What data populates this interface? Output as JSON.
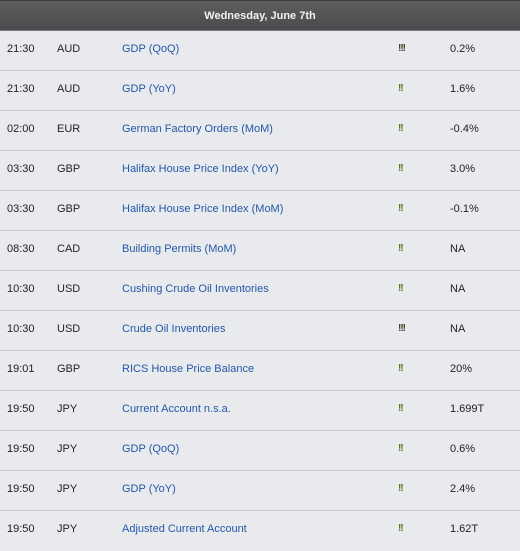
{
  "header": {
    "title": "Wednesday, June 7th"
  },
  "colors": {
    "header_bg": "#4f4f51",
    "link": "#2358a8",
    "impact_high": "#3b3f24",
    "impact_medium": "#4d7d18",
    "row_bg": "#e9eaed"
  },
  "rows": [
    {
      "time": "21:30",
      "currency": "AUD",
      "event": "GDP (QoQ)",
      "impact": "!!!",
      "impact_level": "high",
      "actual": "0.2%"
    },
    {
      "time": "21:30",
      "currency": "AUD",
      "event": "GDP (YoY)",
      "impact": "!!",
      "impact_level": "medium",
      "actual": "1.6%"
    },
    {
      "time": "02:00",
      "currency": "EUR",
      "event": "German Factory Orders (MoM)",
      "impact": "!!",
      "impact_level": "medium",
      "actual": "-0.4%"
    },
    {
      "time": "03:30",
      "currency": "GBP",
      "event": "Halifax House Price Index (YoY)",
      "impact": "!!",
      "impact_level": "medium",
      "actual": "3.0%"
    },
    {
      "time": "03:30",
      "currency": "GBP",
      "event": "Halifax House Price Index (MoM)",
      "impact": "!!",
      "impact_level": "medium",
      "actual": "-0.1%"
    },
    {
      "time": "08:30",
      "currency": "CAD",
      "event": "Building Permits (MoM)",
      "impact": "!!",
      "impact_level": "medium",
      "actual": "NA"
    },
    {
      "time": "10:30",
      "currency": "USD",
      "event": "Cushing Crude Oil Inventories",
      "impact": "!!",
      "impact_level": "medium",
      "actual": "NA"
    },
    {
      "time": "10:30",
      "currency": "USD",
      "event": "Crude Oil Inventories",
      "impact": "!!!",
      "impact_level": "high",
      "actual": "NA"
    },
    {
      "time": "19:01",
      "currency": "GBP",
      "event": "RICS House Price Balance",
      "impact": "!!",
      "impact_level": "medium",
      "actual": "20%"
    },
    {
      "time": "19:50",
      "currency": "JPY",
      "event": "Current Account n.s.a.",
      "impact": "!!",
      "impact_level": "medium",
      "actual": "1.699T"
    },
    {
      "time": "19:50",
      "currency": "JPY",
      "event": "GDP (QoQ)",
      "impact": "!!",
      "impact_level": "medium",
      "actual": "0.6%"
    },
    {
      "time": "19:50",
      "currency": "JPY",
      "event": "GDP (YoY)",
      "impact": "!!",
      "impact_level": "medium",
      "actual": "2.4%"
    },
    {
      "time": "19:50",
      "currency": "JPY",
      "event": "Adjusted Current Account",
      "impact": "!!",
      "impact_level": "medium",
      "actual": "1.62T"
    }
  ]
}
